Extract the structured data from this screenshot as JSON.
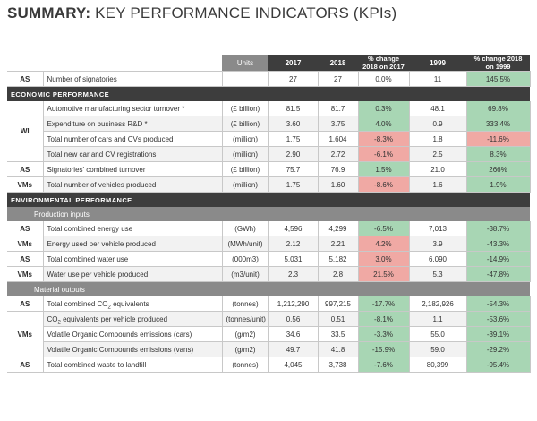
{
  "title": {
    "bold": "SUMMARY:",
    "rest": "KEY PERFORMANCE INDICATORS (KPIs)"
  },
  "header": {
    "units": "Units",
    "y2017": "2017",
    "y2018": "2018",
    "chg1": "% change 2018 on 2017",
    "y1999": "1999",
    "chg2": "% change 2018 on 1999"
  },
  "signatories": {
    "group": "AS",
    "label": "Number of signatories",
    "units": "",
    "v2017": "27",
    "v2018": "27",
    "chg1": "0.0%",
    "v1999": "11",
    "chg2": "145.5%"
  },
  "economic": {
    "heading": "ECONOMIC PERFORMANCE",
    "rows": [
      {
        "group": "WI",
        "label": "Automotive manufacturing sector turnover *",
        "units": "(£ billion)",
        "v2017": "81.5",
        "v2018": "81.7",
        "chg1": "0.3%",
        "v1999": "48.1",
        "chg2": "69.8%"
      },
      {
        "group": "",
        "label": "Expenditure on business R&D *",
        "units": "(£ billion)",
        "v2017": "3.60",
        "v2018": "3.75",
        "chg1": "4.0%",
        "v1999": "0.9",
        "chg2": "333.4%"
      },
      {
        "group": "",
        "label": "Total number of cars and CVs produced",
        "units": "(million)",
        "v2017": "1.75",
        "v2018": "1.604",
        "chg1": "-8.3%",
        "v1999": "1.8",
        "chg2": "-11.6%"
      },
      {
        "group": "",
        "label": "Total new car and CV registrations",
        "units": "(million)",
        "v2017": "2.90",
        "v2018": "2.72",
        "chg1": "-6.1%",
        "v1999": "2.5",
        "chg2": "8.3%"
      },
      {
        "group": "AS",
        "label": "Signatories' combined turnover",
        "units": "(£ billion)",
        "v2017": "75.7",
        "v2018": "76.9",
        "chg1": "1.5%",
        "v1999": "21.0",
        "chg2": "266%"
      },
      {
        "group": "VMs",
        "label": "Total number of vehicles produced",
        "units": "(million)",
        "v2017": "1.75",
        "v2018": "1.60",
        "chg1": "-8.6%",
        "v1999": "1.6",
        "chg2": "1.9%"
      }
    ]
  },
  "environmental": {
    "heading": "ENVIRONMENTAL PERFORMANCE",
    "production_heading": "Production inputs",
    "production": [
      {
        "group": "AS",
        "label": "Total combined energy use",
        "units": "(GWh)",
        "v2017": "4,596",
        "v2018": "4,299",
        "chg1": "-6.5%",
        "v1999": "7,013",
        "chg2": "-38.7%"
      },
      {
        "group": "VMs",
        "label": "Energy used per vehicle produced",
        "units": "(MWh/unit)",
        "v2017": "2.12",
        "v2018": "2.21",
        "chg1": "4.2%",
        "v1999": "3.9",
        "chg2": "-43.3%"
      },
      {
        "group": "AS",
        "label": "Total combined water use",
        "units": "(000m3)",
        "v2017": "5,031",
        "v2018": "5,182",
        "chg1": "3.0%",
        "v1999": "6,090",
        "chg2": "-14.9%"
      },
      {
        "group": "VMs",
        "label": "Water use per vehicle produced",
        "units": "(m3/unit)",
        "v2017": "2.3",
        "v2018": "2.8",
        "chg1": "21.5%",
        "v1999": "5.3",
        "chg2": "-47.8%"
      }
    ],
    "material_heading": "Material outputs",
    "material": [
      {
        "group": "AS",
        "label_pre": "Total combined CO",
        "label_sub": "2",
        "label_post": " equivalents",
        "units": "(tonnes)",
        "v2017": "1,212,290",
        "v2018": "997,215",
        "chg1": "-17.7%",
        "v1999": "2,182,926",
        "chg2": "-54.3%"
      },
      {
        "group": "VMs",
        "label_pre": "CO",
        "label_sub": "2",
        "label_post": " equivalents per vehicle produced",
        "units": "(tonnes/unit)",
        "v2017": "0.56",
        "v2018": "0.51",
        "chg1": "-8.1%",
        "v1999": "1.1",
        "chg2": "-53.6%"
      },
      {
        "group": "",
        "label": "Volatile Organic Compounds emissions (cars)",
        "units": "(g/m2)",
        "v2017": "34.6",
        "v2018": "33.5",
        "chg1": "-3.3%",
        "v1999": "55.0",
        "chg2": "-39.1%"
      },
      {
        "group": "",
        "label": "Volatile Organic Compounds emissions (vans)",
        "units": "(g/m2)",
        "v2017": "49.7",
        "v2018": "41.8",
        "chg1": "-15.9%",
        "v1999": "59.0",
        "chg2": "-29.2%"
      },
      {
        "group": "AS",
        "label": "Total combined waste to landfill",
        "units": "(tonnes)",
        "v2017": "4,045",
        "v2018": "3,738",
        "chg1": "-7.6%",
        "v1999": "80,399",
        "chg2": "-95.4%"
      }
    ]
  },
  "colors": {
    "dark_header": "#3d3d3d",
    "sub_header": "#8a8a8a",
    "positive": "#a8d6b4",
    "negative": "#f0a9a4",
    "alt_row": "#f2f2f2"
  }
}
